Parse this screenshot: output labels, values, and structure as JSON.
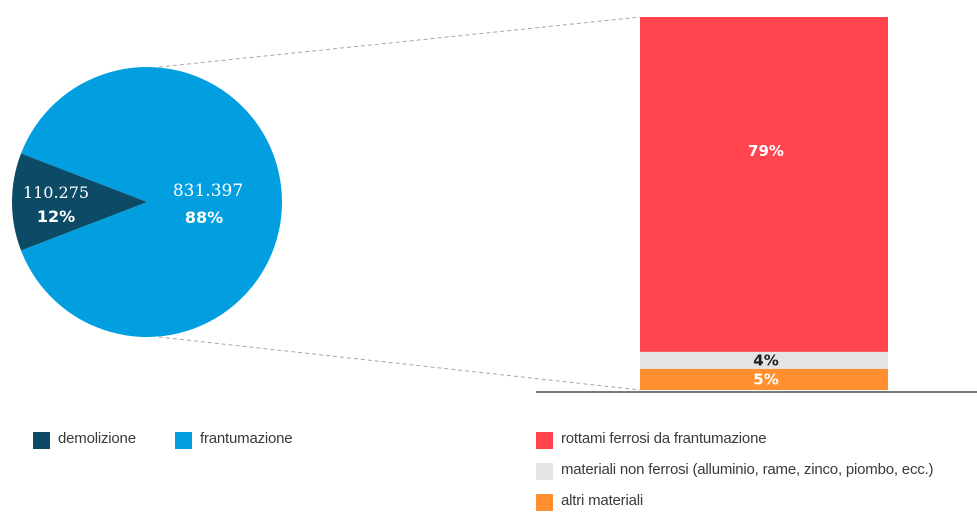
{
  "chart_data": [
    {
      "type": "pie",
      "series": [
        {
          "name": "demolizione",
          "value": 110275,
          "value_label": "110.275",
          "percent_label": "12%",
          "color": "#0d4a66"
        },
        {
          "name": "frantumazione",
          "value": 831397,
          "value_label": "831.397",
          "percent_label": "88%",
          "color": "#019ee0"
        }
      ],
      "legend_position": "bottom-left"
    },
    {
      "type": "bar",
      "stacked": true,
      "ylim": [
        0,
        100
      ],
      "series": [
        {
          "name": "rottami ferrosi da frantumazione",
          "value": 79,
          "label": "79%",
          "color": "#ff444d",
          "label_color": "#ffffff"
        },
        {
          "name": "materiali non ferrosi (alluminio, rame, zinco, piombo, ecc.)",
          "value": 4,
          "label": "4%",
          "color": "#e4e4e4",
          "label_color": "#1f1f1f"
        },
        {
          "name": "altri materiali",
          "value": 5,
          "label": "5%",
          "color": "#ff8f2f",
          "label_color": "#ffffff"
        }
      ],
      "legend_position": "bottom-right"
    }
  ],
  "colors": {
    "connector": "#a8a8a8",
    "baseline": "#2b2b2b",
    "pie_text": "#ffffff"
  }
}
